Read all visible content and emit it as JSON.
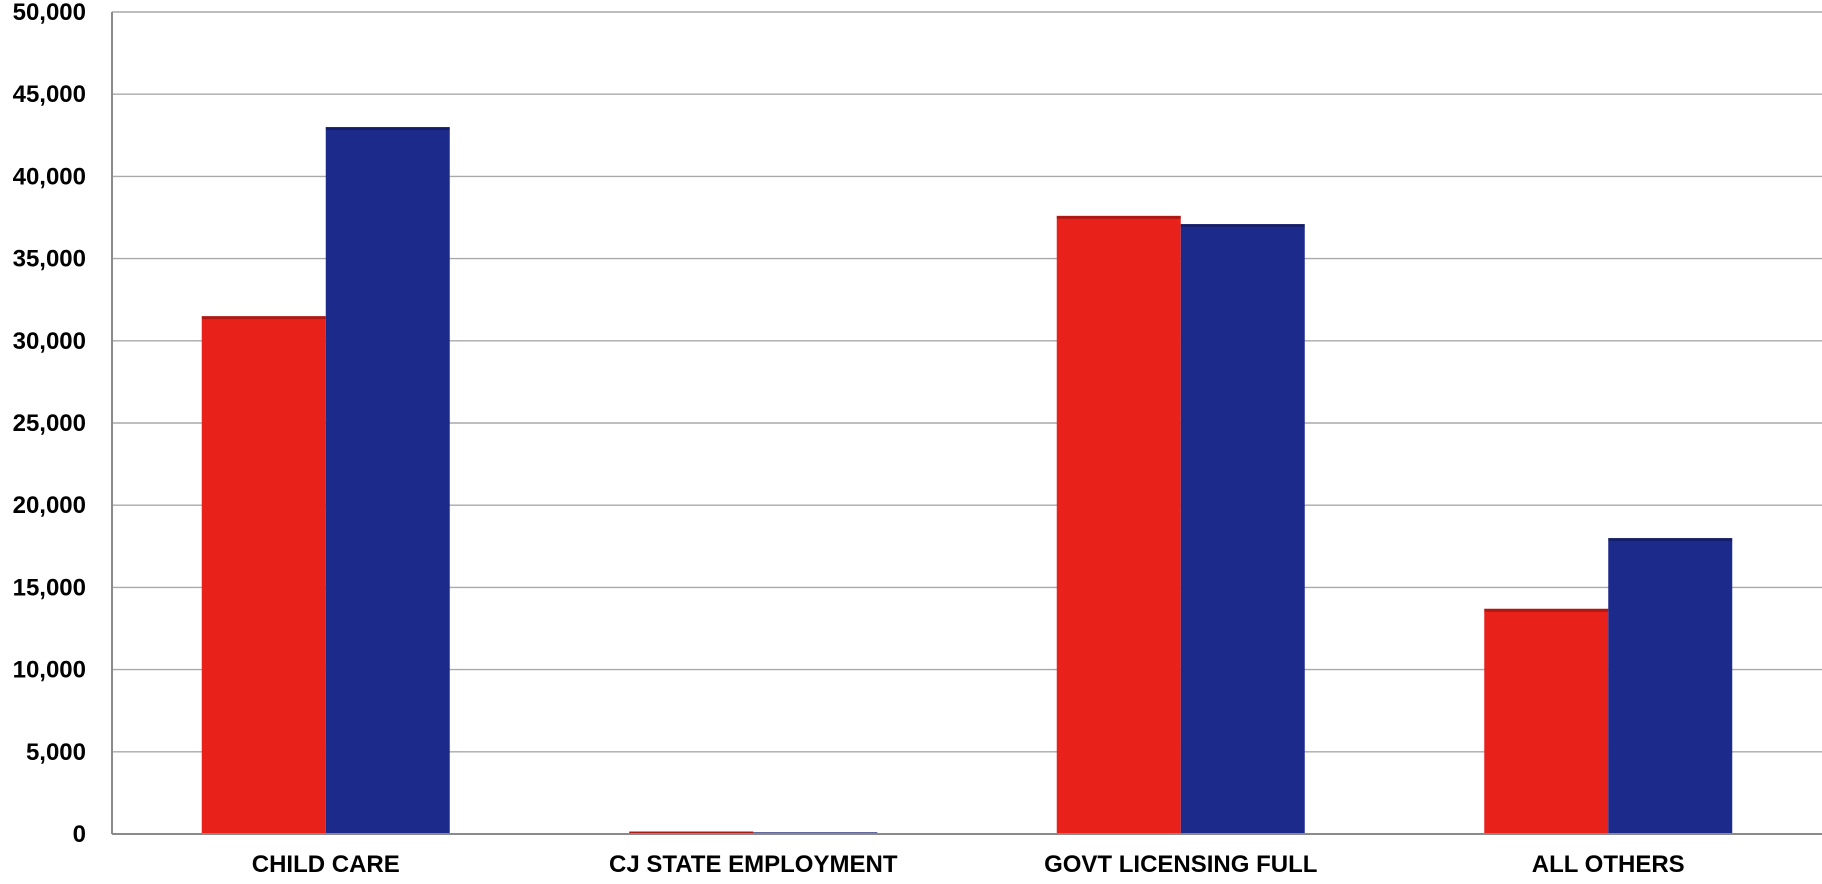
{
  "chart_data": {
    "type": "bar",
    "categories": [
      "CHILD CARE",
      "CJ STATE EMPLOYMENT",
      "GOVT LICENSING FULL",
      "ALL OTHERS"
    ],
    "series": [
      {
        "color": "#e8221b",
        "values": [
          31500,
          150,
          37600,
          13700
        ]
      },
      {
        "color": "#1c2a8c",
        "values": [
          43000,
          100,
          37100,
          18000
        ]
      }
    ],
    "y_ticks": [
      "0",
      "5,000",
      "10,000",
      "15,000",
      "20,000",
      "25,000",
      "30,000",
      "35,000",
      "40,000",
      "45,000",
      "50,000"
    ],
    "ylim": [
      0,
      50000
    ],
    "grid": true,
    "title": "",
    "xlabel": "",
    "ylabel": ""
  }
}
